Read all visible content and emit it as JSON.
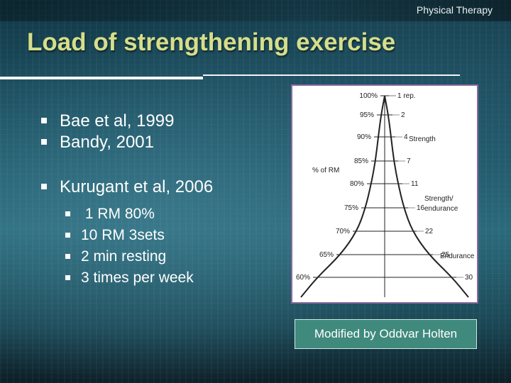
{
  "header": {
    "topic": "Physical Therapy"
  },
  "slide": {
    "title": "Load of strengthening exercise",
    "bullets": [
      {
        "text": "Bae et al, 1999"
      },
      {
        "text": "Bandy, 2001"
      },
      {
        "text": "Kurugant et al, 2006",
        "sub": [
          {
            "text": " 1 RM 80%"
          },
          {
            "text": "10 RM 3sets"
          },
          {
            "text": "2 min resting"
          },
          {
            "text": "3 times per week"
          }
        ]
      }
    ]
  },
  "figure": {
    "axis_label": "% of RM",
    "rows": [
      {
        "percent": "100%",
        "reps": "1 rep.",
        "zone": ""
      },
      {
        "percent": "95%",
        "reps": "2",
        "zone": ""
      },
      {
        "percent": "90%",
        "reps": "4",
        "zone": "Strength"
      },
      {
        "percent": "85%",
        "reps": "7",
        "zone": ""
      },
      {
        "percent": "80%",
        "reps": "11",
        "zone": ""
      },
      {
        "percent": "75%",
        "reps": "16",
        "zone": "Strength/ endurance"
      },
      {
        "percent": "70%",
        "reps": "22",
        "zone": ""
      },
      {
        "percent": "65%",
        "reps": "25",
        "zone": "Endurance"
      },
      {
        "percent": "60%",
        "reps": "30",
        "zone": ""
      }
    ],
    "zone_labels": {
      "strength": "Strength",
      "strength_endurance_1": "Strength/",
      "strength_endurance_2": "endurance",
      "endurance": "Endurance"
    },
    "colors": {
      "ink": "#222222",
      "frame": "#8a6aa0"
    }
  },
  "caption": "Modified by Oddvar Holten",
  "colors": {
    "title": "#d6de8a",
    "caption_bg": "#3f8a7d"
  }
}
